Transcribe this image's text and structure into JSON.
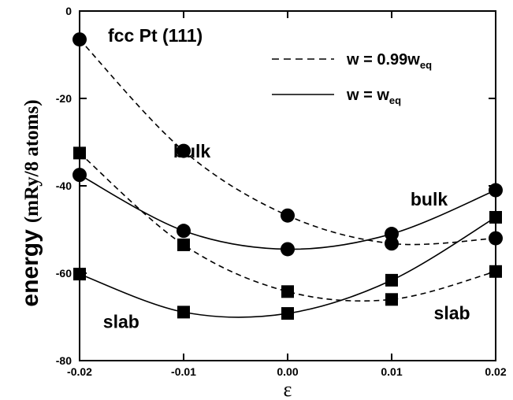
{
  "chart_data": {
    "type": "scatter",
    "title": "fcc Pt (111)",
    "xlabel": "ε",
    "ylabel": "energy",
    "ylabel_unit": "(mRy/8 atoms)",
    "xlim": [
      -0.02,
      0.02
    ],
    "ylim": [
      -80,
      0
    ],
    "x_ticks": [
      -0.02,
      -0.01,
      0.0,
      0.01,
      0.02
    ],
    "x_tick_labels": [
      "-0.02",
      "-0.01",
      "0.00",
      "0.01",
      "0.02"
    ],
    "y_ticks": [
      -80,
      -60,
      -40,
      -20,
      0
    ],
    "y_tick_labels": [
      "-80",
      "-60",
      "-40",
      "-20",
      "0"
    ],
    "grid": false,
    "legend": {
      "placement": "top-right",
      "entries": [
        {
          "label": "w = 0.99w",
          "sub": "eq",
          "style": "dashed"
        },
        {
          "label": "w = w",
          "sub": "eq",
          "style": "solid"
        }
      ]
    },
    "annotations": [
      {
        "text": "bulk",
        "x": -0.0092,
        "y": -33.5
      },
      {
        "text": "bulk",
        "x": 0.0136,
        "y": -44.5
      },
      {
        "text": "slab",
        "x": -0.016,
        "y": -72.5
      },
      {
        "text": "slab",
        "x": 0.0158,
        "y": -70.5
      }
    ],
    "series": [
      {
        "marker": "circle",
        "style": "dashed",
        "x": [
          -0.02,
          -0.01,
          0.0,
          0.01,
          0.02
        ],
        "y": [
          -6.5,
          -32.0,
          -46.8,
          -53.2,
          -52.0
        ]
      },
      {
        "marker": "circle",
        "style": "solid",
        "x": [
          -0.02,
          -0.01,
          0.0,
          0.01,
          0.02
        ],
        "y": [
          -37.5,
          -50.3,
          -54.5,
          -51.0,
          -41.0
        ]
      },
      {
        "marker": "square",
        "style": "dashed",
        "x": [
          -0.02,
          -0.01,
          0.0,
          0.01,
          0.02
        ],
        "y": [
          -32.5,
          -53.5,
          -64.2,
          -66.0,
          -59.6
        ]
      },
      {
        "marker": "square",
        "style": "solid",
        "x": [
          -0.02,
          -0.01,
          0.0,
          0.01,
          0.02
        ],
        "y": [
          -60.2,
          -68.9,
          -69.2,
          -61.6,
          -47.2
        ]
      }
    ]
  }
}
